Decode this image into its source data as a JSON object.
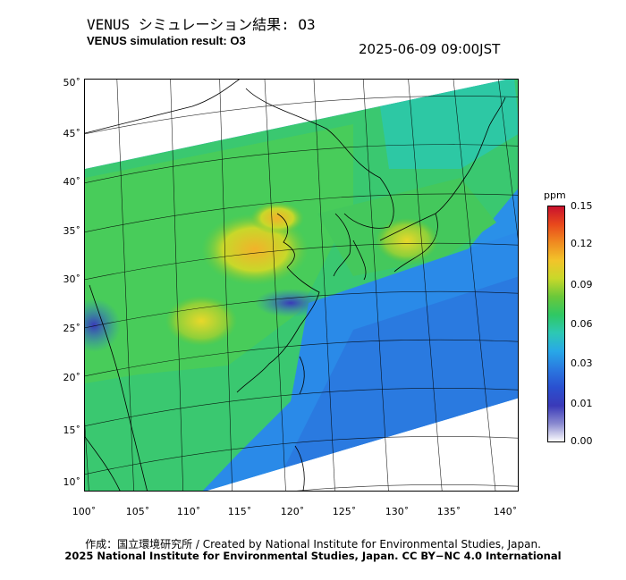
{
  "header": {
    "title_ja": "VENUS シミュレーション結果: O3",
    "title_en": "VENUS simulation result: O3",
    "timestamp": "2025-06-09 09:00JST"
  },
  "map": {
    "lat_labels": [
      "50˚",
      "45˚",
      "40˚",
      "35˚",
      "30˚",
      "25˚",
      "20˚",
      "15˚",
      "10˚"
    ],
    "lon_labels": [
      "100˚",
      "105˚",
      "110˚",
      "115˚",
      "120˚",
      "125˚",
      "130˚",
      "135˚",
      "140˚"
    ]
  },
  "colorbar": {
    "unit": "ppm",
    "ticks": [
      "0.15",
      "0.12",
      "0.09",
      "0.06",
      "0.03",
      "0.01",
      "0.00"
    ],
    "colors": [
      "#c8102e",
      "#e8481c",
      "#f08a20",
      "#f2c42a",
      "#c8d82a",
      "#6ac83a",
      "#2fc864",
      "#2dc8b4",
      "#28a8e8",
      "#2a78e0",
      "#2a50d0",
      "#3a3ab8",
      "#8a8ad0",
      "#ffffff"
    ]
  },
  "footer": {
    "line1": "作成：国立環境研究所 / Created by National Institute for Environmental Studies, Japan.",
    "line2": "2025 National Institute for Environmental Studies, Japan. CC BY−NC 4.0 International"
  }
}
